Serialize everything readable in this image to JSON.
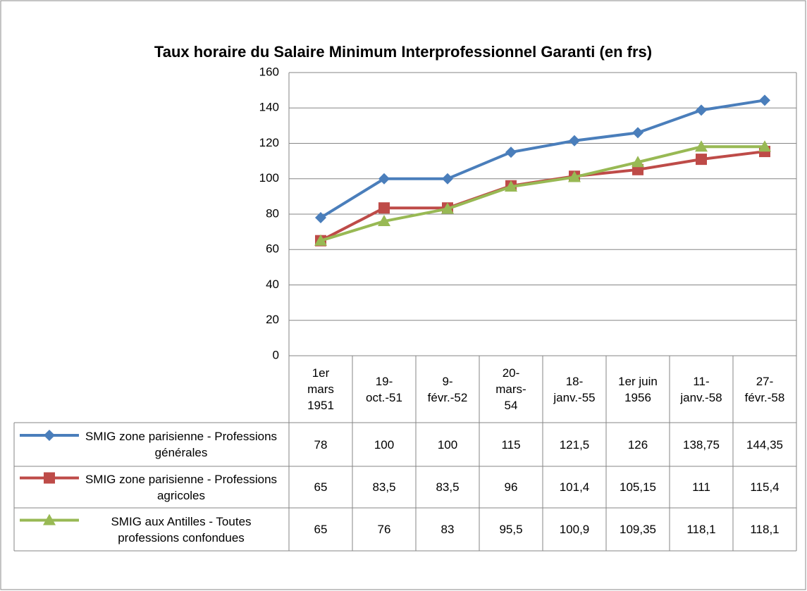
{
  "chart_data": {
    "type": "line",
    "title": "Taux horaire du Salaire Minimum Interprofessionnel Garanti (en frs)",
    "categories": [
      "1er mars 1951",
      "19-oct.-51",
      "9-févr.-52",
      "20-mars-54",
      "18-janv.-55",
      "1er juin 1956",
      "11-janv.-58",
      "27-févr.-58"
    ],
    "series": [
      {
        "name": "SMIG zone parisienne - Professions générales",
        "color": "#4a7ebb",
        "marker": "diamond",
        "values": [
          78,
          100,
          100,
          115,
          121.5,
          126,
          138.75,
          144.35
        ],
        "value_labels": [
          "78",
          "100",
          "100",
          "115",
          "121,5",
          "126",
          "138,75",
          "144,35"
        ]
      },
      {
        "name": "SMIG zone parisienne - Professions agricoles",
        "color": "#be4b48",
        "marker": "square",
        "values": [
          65,
          83.5,
          83.5,
          96,
          101.4,
          105.15,
          111,
          115.4
        ],
        "value_labels": [
          "65",
          "83,5",
          "83,5",
          "96",
          "101,4",
          "105,15",
          "111",
          "115,4"
        ]
      },
      {
        "name": "SMIG aux Antilles - Toutes professions confondues",
        "color": "#98b954",
        "marker": "triangle",
        "values": [
          65,
          76,
          83,
          95.5,
          100.9,
          109.35,
          118.1,
          118.1
        ],
        "value_labels": [
          "65",
          "76",
          "83",
          "95,5",
          "100,9",
          "109,35",
          "118,1",
          "118,1"
        ]
      }
    ],
    "ylim": [
      0,
      160
    ],
    "yticks": [
      0,
      20,
      40,
      60,
      80,
      100,
      120,
      140,
      160
    ],
    "grid": true
  }
}
